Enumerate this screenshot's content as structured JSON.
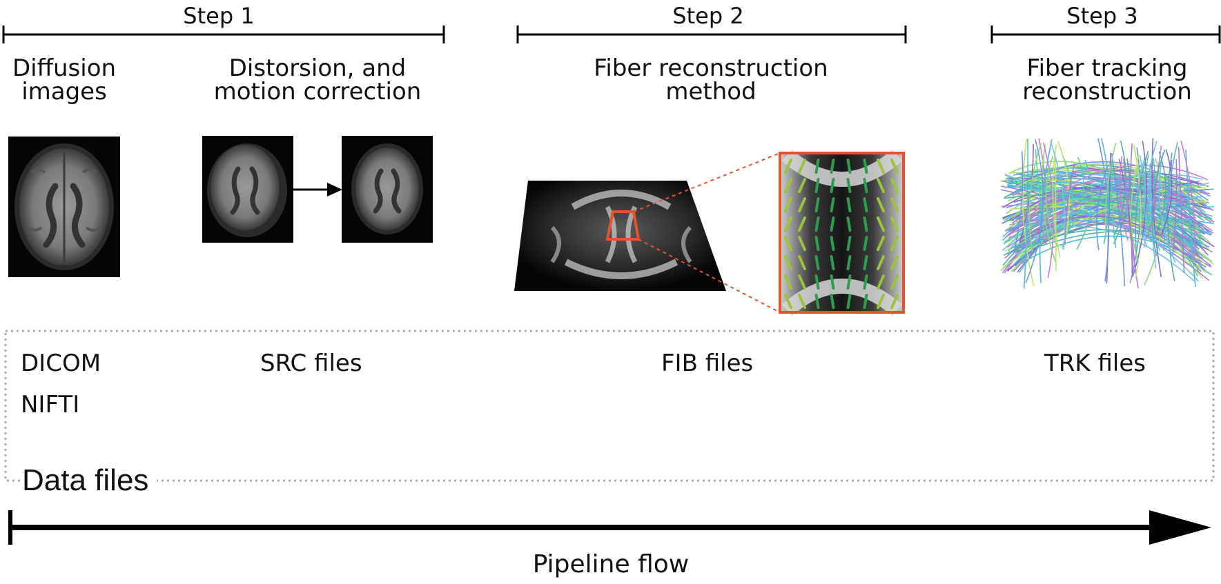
{
  "steps": [
    {
      "title": "Step 1"
    },
    {
      "title": "Step 2"
    },
    {
      "title": "Step 3"
    }
  ],
  "stages": [
    {
      "line1": "Diffusion",
      "line2": "images"
    },
    {
      "line1": "Distorsion, and",
      "line2": "motion correction"
    },
    {
      "line1": "Fiber reconstruction",
      "line2": "method"
    },
    {
      "line1": "Fiber tracking",
      "line2": "reconstruction"
    }
  ],
  "data_files": {
    "title": "Data files",
    "dicom": "DICOM",
    "nifti": "NIFTI",
    "src": "SRC files",
    "fib": "FIB files",
    "trk": "TRK files"
  },
  "pipeline": {
    "label": "Pipeline flow"
  },
  "colors": {
    "highlight": "#e5532a",
    "fiber_green": "#2e9e4e",
    "fiber_lime": "#9ac43a",
    "line": "#000000",
    "dotted_box": "#aaaaaa"
  }
}
